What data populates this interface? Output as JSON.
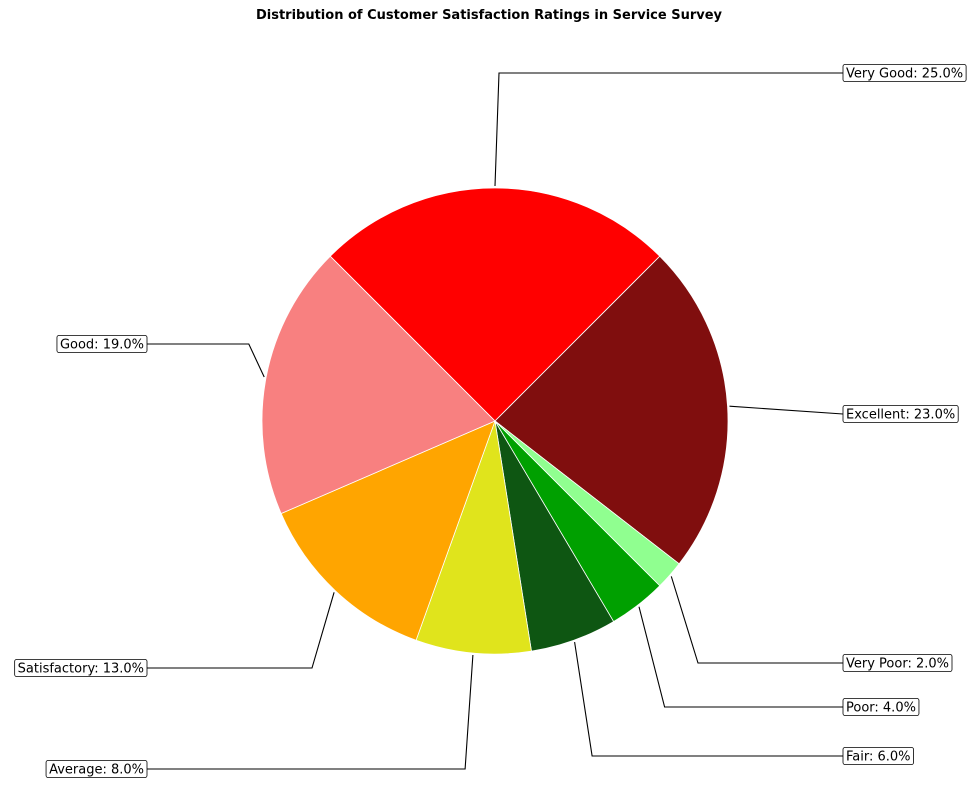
{
  "chart_data": {
    "type": "pie",
    "title": "Distribution of Customer Satisfaction Ratings in Service Survey",
    "slices": [
      {
        "label": "Very Good",
        "value": 25.0,
        "text": "Very Good: 25.0%",
        "color": "#ff0000"
      },
      {
        "label": "Excellent",
        "value": 23.0,
        "text": "Excellent: 23.0%",
        "color": "#800e0e"
      },
      {
        "label": "Very Poor",
        "value": 2.0,
        "text": "Very Poor: 2.0%",
        "color": "#90ff90"
      },
      {
        "label": "Poor",
        "value": 4.0,
        "text": "Poor: 4.0%",
        "color": "#00a000"
      },
      {
        "label": "Fair",
        "value": 6.0,
        "text": "Fair: 6.0%",
        "color": "#0e5612"
      },
      {
        "label": "Average",
        "value": 8.0,
        "text": "Average: 8.0%",
        "color": "#e0e41c"
      },
      {
        "label": "Satisfactory",
        "value": 13.0,
        "text": "Satisfactory: 13.0%",
        "color": "#ffa500"
      },
      {
        "label": "Good",
        "value": 19.0,
        "text": "Good: 19.0%",
        "color": "#f88080"
      }
    ],
    "start_angle_deg": 135,
    "direction": "clockwise",
    "label_style": "boxed-callout"
  }
}
